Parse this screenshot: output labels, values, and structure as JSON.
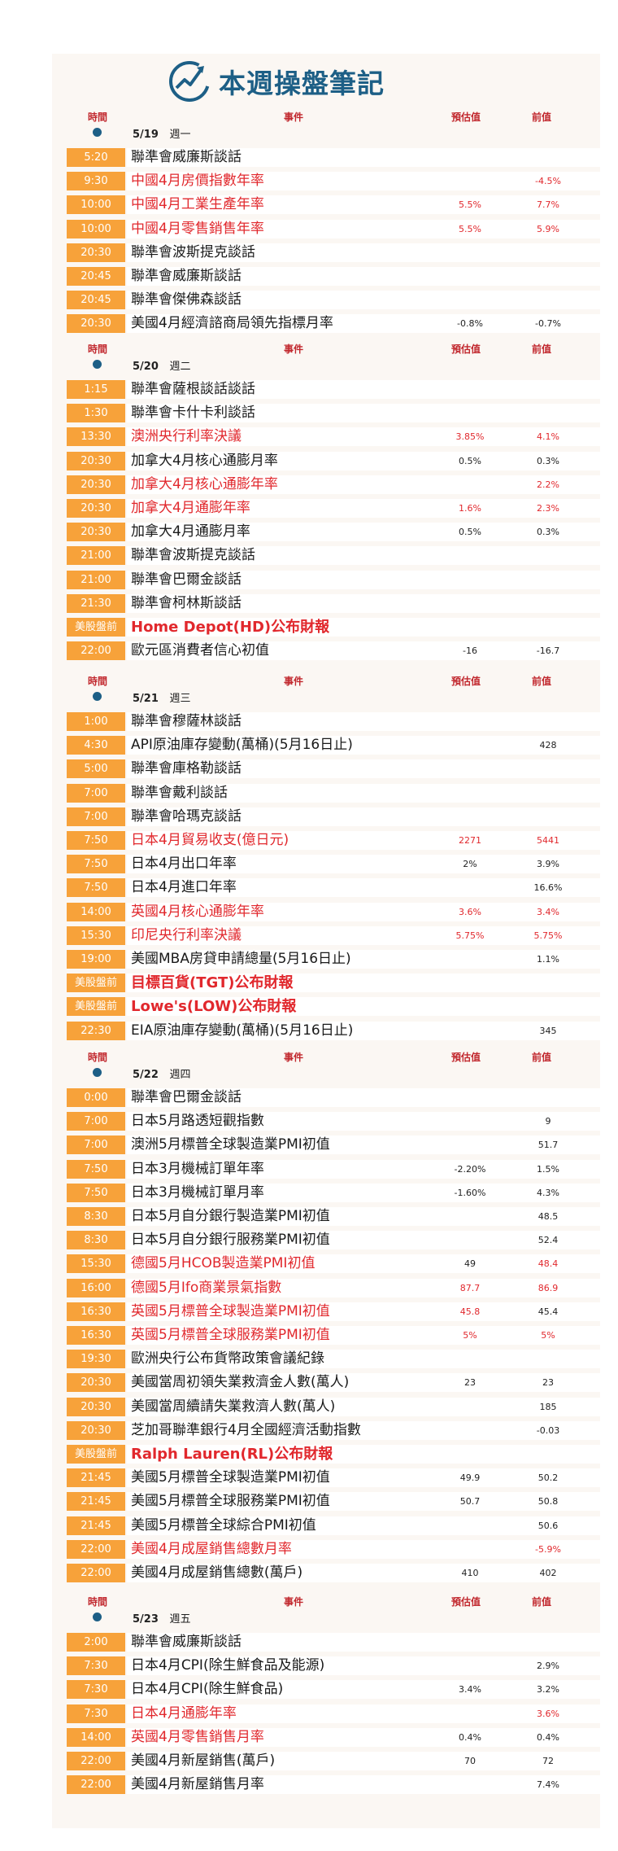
{
  "title": "本週操盤筆記",
  "headers": {
    "time": "時間",
    "event": "事件",
    "forecast": "預估值",
    "previous": "前值"
  },
  "days": [
    {
      "date": "5/19",
      "weekday": "週一",
      "rows": [
        {
          "time": "5:20",
          "event": "聯準會威廉斯談話",
          "forecast": "",
          "previous": "",
          "red": false
        },
        {
          "time": "9:30",
          "event": "中國4月房價指數年率",
          "forecast": "",
          "previous": "-4.5%",
          "red": true
        },
        {
          "time": "10:00",
          "event": "中國4月工業生產年率",
          "forecast": "5.5%",
          "previous": "7.7%",
          "red": true
        },
        {
          "time": "10:00",
          "event": "中國4月零售銷售年率",
          "forecast": "5.5%",
          "previous": "5.9%",
          "red": true
        },
        {
          "time": "20:30",
          "event": "聯準會波斯提克談話",
          "forecast": "",
          "previous": "",
          "red": false
        },
        {
          "time": "20:45",
          "event": "聯準會威廉斯談話",
          "forecast": "",
          "previous": "",
          "red": false
        },
        {
          "time": "20:45",
          "event": "聯準會傑佛森談話",
          "forecast": "",
          "previous": "",
          "red": false
        },
        {
          "time": "20:30",
          "event": "美國4月經濟諮商局領先指標月率",
          "forecast": "-0.8%",
          "previous": "-0.7%",
          "red": false
        }
      ]
    },
    {
      "date": "5/20",
      "weekday": "週二",
      "rows": [
        {
          "time": "1:15",
          "event": "聯準會薩根談話談話",
          "forecast": "",
          "previous": "",
          "red": false
        },
        {
          "time": "1:30",
          "event": "聯準會卡什卡利談話",
          "forecast": "",
          "previous": "",
          "red": false
        },
        {
          "time": "13:30",
          "event": "澳洲央行利率決議",
          "forecast": "3.85%",
          "previous": "4.1%",
          "red": true
        },
        {
          "time": "20:30",
          "event": "加拿大4月核心通膨月率",
          "forecast": "0.5%",
          "previous": "0.3%",
          "red": false
        },
        {
          "time": "20:30",
          "event": "加拿大4月核心通膨年率",
          "forecast": "",
          "previous": "2.2%",
          "red": true
        },
        {
          "time": "20:30",
          "event": "加拿大4月通膨年率",
          "forecast": "1.6%",
          "previous": "2.3%",
          "red": true
        },
        {
          "time": "20:30",
          "event": "加拿大4月通膨月率",
          "forecast": "0.5%",
          "previous": "0.3%",
          "red": false
        },
        {
          "time": "21:00",
          "event": "聯準會波斯提克談話",
          "forecast": "",
          "previous": "",
          "red": false
        },
        {
          "time": "21:00",
          "event": "聯準會巴爾金談話",
          "forecast": "",
          "previous": "",
          "red": false
        },
        {
          "time": "21:30",
          "event": "聯準會柯林斯談話",
          "forecast": "",
          "previous": "",
          "red": false
        },
        {
          "time": "美股盤前",
          "event": "Home Depot(HD)公布財報",
          "forecast": "",
          "previous": "",
          "red": true,
          "big": true
        },
        {
          "time": "22:00",
          "event": "歐元區消費者信心初值",
          "forecast": "-16",
          "previous": "-16.7",
          "red": false
        }
      ]
    },
    {
      "date": "5/21",
      "weekday": "週三",
      "rows": [
        {
          "time": "1:00",
          "event": "聯準會穆薩林談話",
          "forecast": "",
          "previous": "",
          "red": false
        },
        {
          "time": "4:30",
          "event": "API原油庫存變動(萬桶)(5月16日止)",
          "forecast": "",
          "previous": "428",
          "red": false
        },
        {
          "time": "5:00",
          "event": "聯準會庫格勒談話",
          "forecast": "",
          "previous": "",
          "red": false
        },
        {
          "time": "7:00",
          "event": "聯準會戴利談話",
          "forecast": "",
          "previous": "",
          "red": false
        },
        {
          "time": "7:00",
          "event": "聯準會哈瑪克談話",
          "forecast": "",
          "previous": "",
          "red": false
        },
        {
          "time": "7:50",
          "event": "日本4月貿易收支(億日元)",
          "forecast": "2271",
          "previous": "5441",
          "red": true
        },
        {
          "time": "7:50",
          "event": "日本4月出口年率",
          "forecast": "2%",
          "previous": "3.9%",
          "red": false
        },
        {
          "time": "7:50",
          "event": "日本4月進口年率",
          "forecast": "",
          "previous": "16.6%",
          "red": false
        },
        {
          "time": "14:00",
          "event": "英國4月核心通膨年率",
          "forecast": "3.6%",
          "previous": "3.4%",
          "red": true
        },
        {
          "time": "15:30",
          "event": "印尼央行利率決議",
          "forecast": "5.75%",
          "previous": "5.75%",
          "red": true
        },
        {
          "time": "19:00",
          "event": "美國MBA房貸申請總量(5月16日止)",
          "forecast": "",
          "previous": "1.1%",
          "red": false
        },
        {
          "time": "美股盤前",
          "event": "目標百貨(TGT)公布財報",
          "forecast": "",
          "previous": "",
          "red": true,
          "big": true
        },
        {
          "time": "美股盤前",
          "event": "Lowe's(LOW)公布財報",
          "forecast": "",
          "previous": "",
          "red": true,
          "big": true
        },
        {
          "time": "22:30",
          "event": "EIA原油庫存變動(萬桶)(5月16日止)",
          "forecast": "",
          "previous": "345",
          "red": false
        }
      ]
    },
    {
      "date": "5/22",
      "weekday": "週四",
      "rows": [
        {
          "time": "0:00",
          "event": "聯準會巴爾金談話",
          "forecast": "",
          "previous": "",
          "red": false
        },
        {
          "time": "7:00",
          "event": "日本5月路透短觀指數",
          "forecast": "",
          "previous": "9",
          "red": false
        },
        {
          "time": "7:00",
          "event": "澳洲5月標普全球製造業PMI初值",
          "forecast": "",
          "previous": "51.7",
          "red": false
        },
        {
          "time": "7:50",
          "event": "日本3月機械訂單年率",
          "forecast": "-2.20%",
          "previous": "1.5%",
          "red": false
        },
        {
          "time": "7:50",
          "event": "日本3月機械訂單月率",
          "forecast": "-1.60%",
          "previous": "4.3%",
          "red": false
        },
        {
          "time": "8:30",
          "event": "日本5月自分銀行製造業PMI初值",
          "forecast": "",
          "previous": "48.5",
          "red": false
        },
        {
          "time": "8:30",
          "event": "日本5月自分銀行服務業PMI初值",
          "forecast": "",
          "previous": "52.4",
          "red": false
        },
        {
          "time": "15:30",
          "event": "德國5月HCOB製造業PMI初值",
          "forecast": "49",
          "previous": "48.4",
          "red": true,
          "fblack": true
        },
        {
          "time": "16:00",
          "event": "德國5月Ifo商業景氣指數",
          "forecast": "87.7",
          "previous": "86.9",
          "red": true
        },
        {
          "time": "16:30",
          "event": "英國5月標普全球製造業PMI初值",
          "forecast": "45.8",
          "previous": "45.4",
          "red": true,
          "pblack": true
        },
        {
          "time": "16:30",
          "event": "英國5月標普全球服務業PMI初值",
          "forecast": "5%",
          "previous": "5%",
          "red": true
        },
        {
          "time": "19:30",
          "event": "歐洲央行公布貨幣政策會議紀錄",
          "forecast": "",
          "previous": "",
          "red": false
        },
        {
          "time": "20:30",
          "event": "美國當周初領失業救濟金人數(萬人)",
          "forecast": "23",
          "previous": "23",
          "red": false
        },
        {
          "time": "20:30",
          "event": "美國當周續請失業救濟人數(萬人)",
          "forecast": "",
          "previous": "185",
          "red": false
        },
        {
          "time": "20:30",
          "event": "芝加哥聯準銀行4月全國經濟活動指數",
          "forecast": "",
          "previous": "-0.03",
          "red": false
        },
        {
          "time": "美股盤前",
          "event": "Ralph Lauren(RL)公布財報",
          "forecast": "",
          "previous": "",
          "red": true,
          "big": true
        },
        {
          "time": "21:45",
          "event": "美國5月標普全球製造業PMI初值",
          "forecast": "49.9",
          "previous": "50.2",
          "red": false
        },
        {
          "time": "21:45",
          "event": "美國5月標普全球服務業PMI初值",
          "forecast": "50.7",
          "previous": "50.8",
          "red": false
        },
        {
          "time": "21:45",
          "event": "美國5月標普全球綜合PMI初值",
          "forecast": "",
          "previous": "50.6",
          "red": false
        },
        {
          "time": "22:00",
          "event": "美國4月成屋銷售總數月率",
          "forecast": "",
          "previous": "-5.9%",
          "red": true
        },
        {
          "time": "22:00",
          "event": "美國4月成屋銷售總數(萬戶)",
          "forecast": "410",
          "previous": "402",
          "red": false
        }
      ]
    },
    {
      "date": "5/23",
      "weekday": "週五",
      "rows": [
        {
          "time": "2:00",
          "event": "聯準會威廉斯談話",
          "forecast": "",
          "previous": "",
          "red": false
        },
        {
          "time": "7:30",
          "event": "日本4月CPI(除生鮮食品及能源)",
          "forecast": "",
          "previous": "2.9%",
          "red": false
        },
        {
          "time": "7:30",
          "event": "日本4月CPI(除生鮮食品)",
          "forecast": "3.4%",
          "previous": "3.2%",
          "red": false
        },
        {
          "time": "7:30",
          "event": "日本4月通膨年率",
          "forecast": "",
          "previous": "3.6%",
          "red": true
        },
        {
          "time": "14:00",
          "event": "英國4月零售銷售月率",
          "forecast": "0.4%",
          "previous": "0.4%",
          "red": true,
          "fblack": true,
          "pblack": true
        },
        {
          "time": "22:00",
          "event": "美國4月新屋銷售(萬戶)",
          "forecast": "70",
          "previous": "72",
          "red": false
        },
        {
          "time": "22:00",
          "event": "美國4月新屋銷售月率",
          "forecast": "",
          "previous": "7.4%",
          "red": false
        }
      ]
    }
  ],
  "colors": {
    "accent": "#f7a23a",
    "red": "#e1282d",
    "brand": "#1d5f86",
    "background": "#fbf7f3"
  },
  "icons": {
    "logo": "chart-logo-icon",
    "dot": "bullet-dot-icon"
  }
}
